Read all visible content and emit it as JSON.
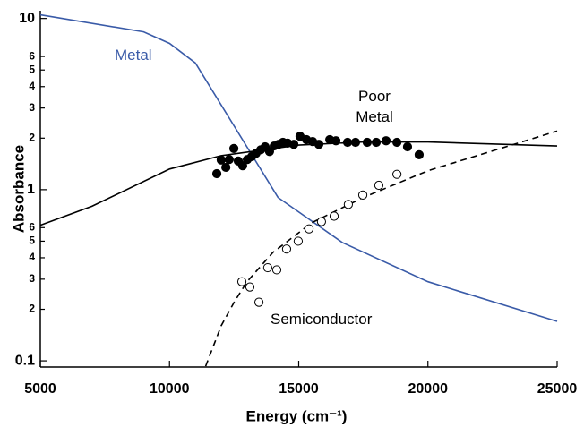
{
  "chart_data": {
    "type": "line",
    "xlabel": "Energy (cm⁻¹)",
    "ylabel": "Absorbance",
    "log_y": true,
    "xlim": [
      5000,
      25000
    ],
    "xticks": [
      5000,
      10000,
      15000,
      20000,
      25000
    ],
    "ylim": [
      0.092,
      11.1
    ],
    "yticks": [
      0.1,
      {
        "value": 0.2,
        "label": "2"
      },
      {
        "value": 0.3,
        "label": "3"
      },
      {
        "value": 0.4,
        "label": "4"
      },
      {
        "value": 0.5,
        "label": "5"
      },
      {
        "value": 0.6,
        "label": "6"
      },
      1,
      2,
      3,
      4,
      5,
      6,
      10
    ],
    "annotations": [
      "Metal",
      "Poor Metal",
      "Semiconductor"
    ],
    "series": [
      {
        "kind": "line",
        "style": "solid",
        "color": "#3a5ba8",
        "x": [
          5000,
          9000,
          10000,
          11000,
          14200,
          16700,
          20000,
          25000
        ],
        "values": [
          10.5,
          8.35,
          7.15,
          5.5,
          0.9,
          0.49,
          0.29,
          0.17
        ]
      },
      {
        "kind": "line",
        "style": "solid",
        "color": "#000000",
        "x": [
          5000,
          7000,
          10000,
          12000,
          15000,
          17500,
          20000,
          25000
        ],
        "values": [
          0.62,
          0.8,
          1.32,
          1.58,
          1.82,
          1.9,
          1.9,
          1.8
        ]
      },
      {
        "kind": "line",
        "style": "dashed",
        "color": "#000000",
        "x": [
          11400,
          12000,
          12500,
          13000,
          14000,
          15500,
          17500,
          20000,
          25000
        ],
        "values": [
          0.093,
          0.16,
          0.22,
          0.29,
          0.43,
          0.64,
          0.9,
          1.29,
          2.2
        ]
      },
      {
        "kind": "scatter",
        "marker": "filled",
        "color": "#000000",
        "x": [
          11830,
          12000,
          12180,
          12310,
          12490,
          12660,
          12830,
          13010,
          13180,
          13350,
          13530,
          13700,
          13870,
          14050,
          14220,
          14390,
          14570,
          14810,
          15050,
          15300,
          15540,
          15780,
          16200,
          16440,
          16890,
          17200,
          17650,
          18000,
          18380,
          18800,
          19210,
          19660
        ],
        "values": [
          1.24,
          1.49,
          1.35,
          1.5,
          1.74,
          1.47,
          1.38,
          1.5,
          1.56,
          1.63,
          1.71,
          1.78,
          1.67,
          1.8,
          1.84,
          1.89,
          1.87,
          1.84,
          2.05,
          1.96,
          1.91,
          1.84,
          1.96,
          1.93,
          1.89,
          1.89,
          1.89,
          1.89,
          1.93,
          1.89,
          1.78,
          1.6
        ]
      },
      {
        "kind": "scatter",
        "marker": "open",
        "color": "#000000",
        "x": [
          12800,
          13110,
          13460,
          13800,
          14150,
          14530,
          14980,
          15400,
          15880,
          16370,
          16920,
          17480,
          18100,
          18800
        ],
        "values": [
          0.29,
          0.27,
          0.22,
          0.35,
          0.34,
          0.45,
          0.5,
          0.59,
          0.65,
          0.7,
          0.82,
          0.93,
          1.06,
          1.23
        ]
      }
    ]
  }
}
